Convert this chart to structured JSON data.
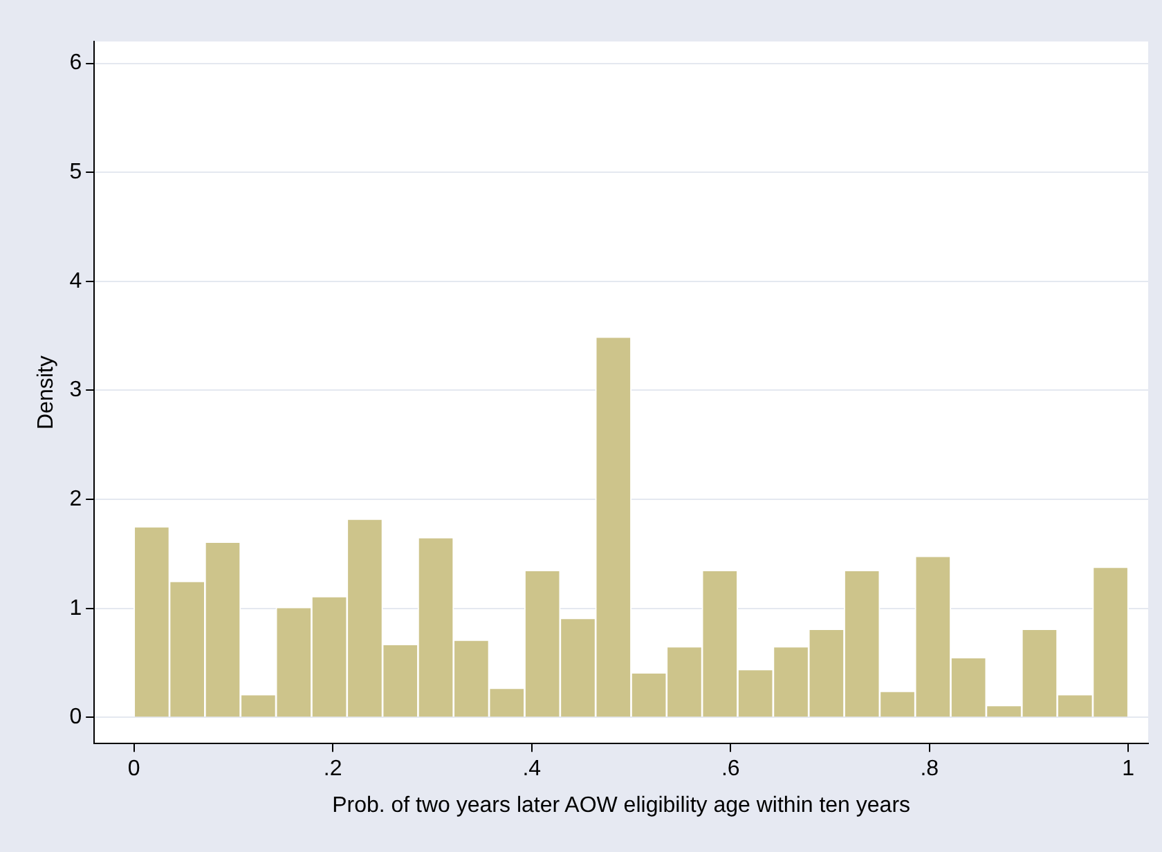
{
  "chart_data": {
    "type": "histogram",
    "xlabel": "Prob. of two years later AOW eligibility age within ten years",
    "ylabel": "Density",
    "bins": [
      0,
      0.0357,
      0.0714,
      0.1071,
      0.1429,
      0.1786,
      0.2143,
      0.25,
      0.2857,
      0.3214,
      0.3571,
      0.3929,
      0.4286,
      0.4643,
      0.5,
      0.5357,
      0.5714,
      0.6071,
      0.6429,
      0.6786,
      0.7143,
      0.75,
      0.7857,
      0.8214,
      0.8571,
      0.8929,
      0.9286,
      0.9643,
      1
    ],
    "values": [
      1.75,
      1.25,
      1.61,
      0.21,
      1.01,
      1.11,
      1.82,
      0.67,
      1.65,
      0.71,
      0.27,
      1.35,
      0.91,
      3.49,
      0.41,
      0.65,
      1.35,
      0.44,
      0.65,
      0.81,
      1.35,
      0.24,
      1.48,
      0.55,
      0.11,
      0.81,
      0.21,
      1.38
    ],
    "color": "#cdc48b",
    "xlim": [
      -0.04,
      1.02
    ],
    "ylim": [
      -0.24,
      6.2
    ],
    "xticks": [
      0,
      {
        "value": 0.2,
        "label": ".2"
      },
      {
        "value": 0.4,
        "label": ".4"
      },
      {
        "value": 0.6,
        "label": ".6"
      },
      {
        "value": 0.8,
        "label": ".8"
      },
      1
    ],
    "yticks": [
      0,
      1,
      2,
      3,
      4,
      5,
      6
    ],
    "grid": "y"
  }
}
